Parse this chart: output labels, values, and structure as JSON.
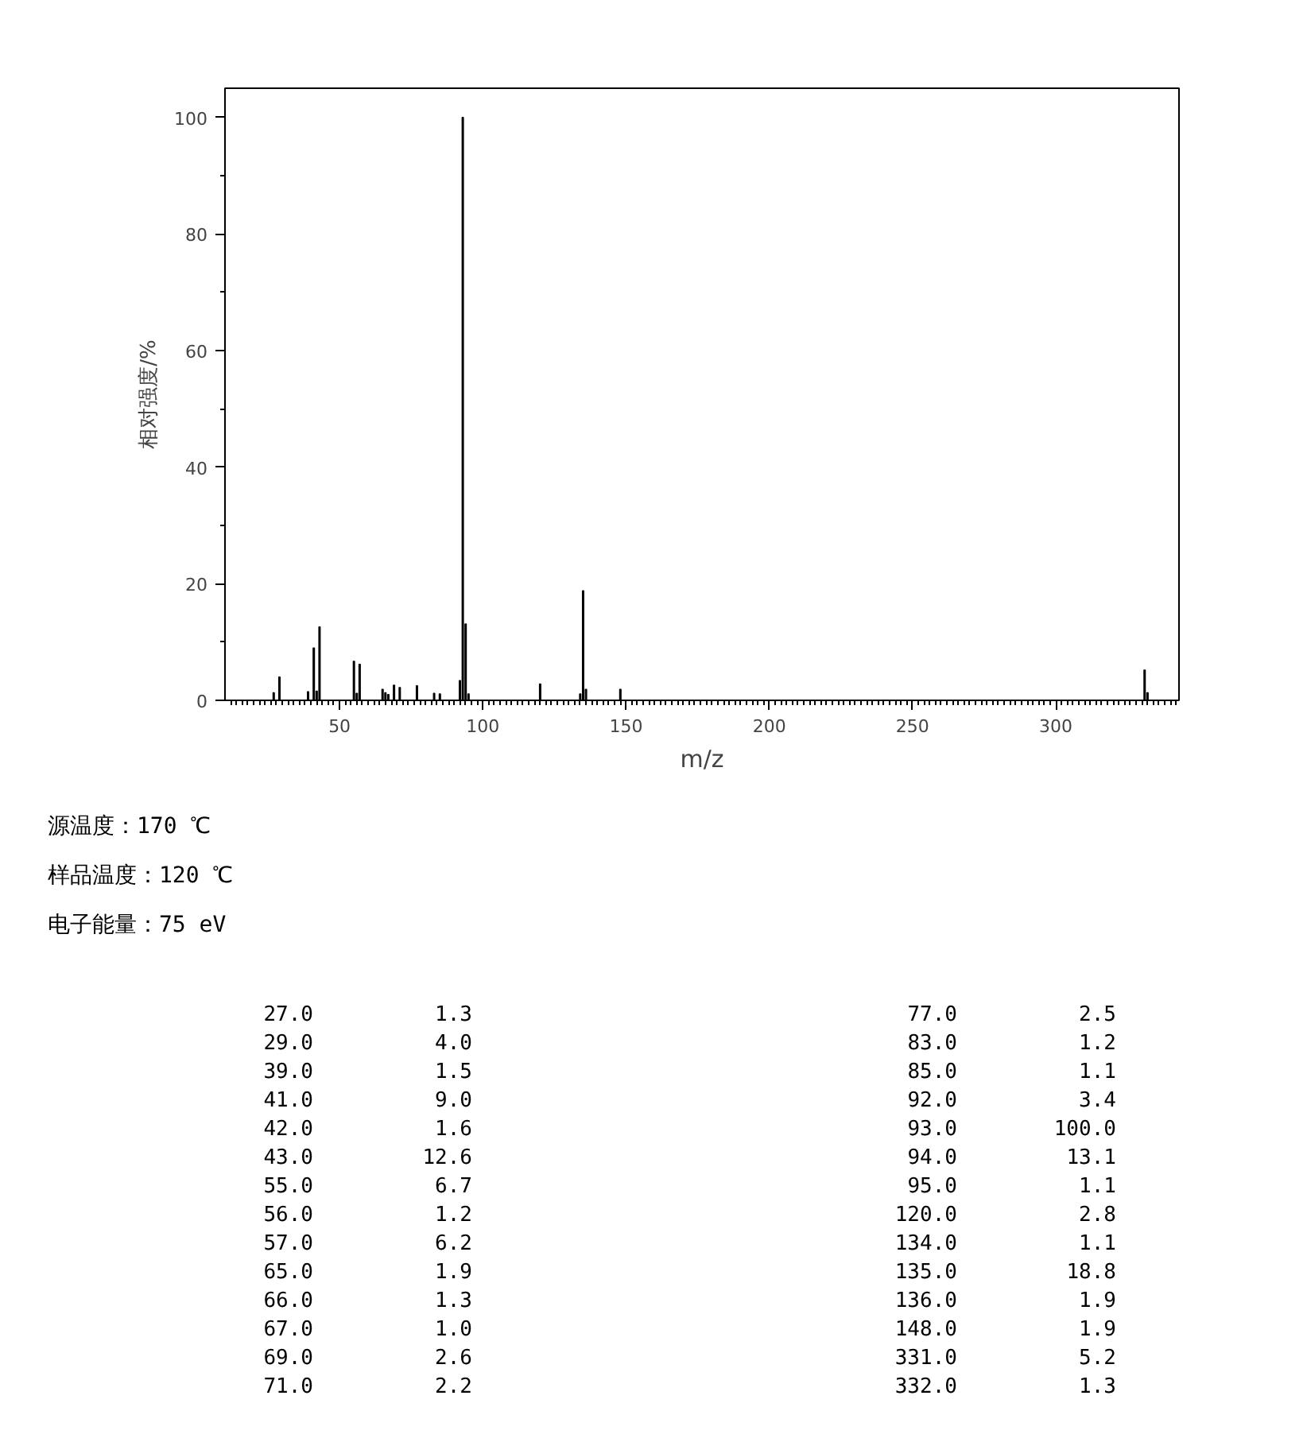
{
  "chart_data": [
    {
      "type": "bar",
      "xlabel": "m/z",
      "ylabel": "相对强度/%",
      "x": [
        27,
        29,
        39,
        41,
        42,
        43,
        55,
        56,
        57,
        65,
        66,
        67,
        69,
        71,
        77,
        83,
        85,
        92,
        93,
        94,
        95,
        120,
        134,
        135,
        136,
        148,
        331,
        332
      ],
      "values": [
        1.3,
        4.0,
        1.5,
        9.0,
        1.6,
        12.6,
        6.7,
        1.2,
        6.2,
        1.9,
        1.3,
        1.0,
        2.6,
        2.2,
        2.5,
        1.2,
        1.1,
        3.4,
        100.0,
        13.1,
        1.1,
        2.8,
        1.1,
        18.8,
        1.9,
        1.9,
        5.2,
        1.3
      ],
      "color": "#000000",
      "xlim": [
        10,
        343
      ],
      "ylim": [
        0,
        105
      ],
      "xticks": [
        50,
        100,
        150,
        200,
        250,
        300
      ],
      "yticks": [
        0,
        20,
        40,
        60,
        80,
        100
      ],
      "grid": false,
      "annotations": [
        "源温度：170 ℃",
        "样品温度：120 ℃",
        "电子能量：75 eV"
      ]
    },
    {
      "type": "other",
      "annotations": [
        "27.0",
        "1.3",
        "77.0",
        "2.5",
        "29.0",
        "4.0",
        "83.0",
        "1.2",
        "39.0",
        "1.5",
        "85.0",
        "1.1",
        "41.0",
        "9.0",
        "92.0",
        "3.4",
        "42.0",
        "1.6",
        "93.0",
        "100.0",
        "43.0",
        "12.6",
        "94.0",
        "13.1",
        "55.0",
        "6.7",
        "95.0",
        "1.1",
        "56.0",
        "1.2",
        "120.0",
        "2.8",
        "57.0",
        "6.2",
        "134.0",
        "1.1",
        "65.0",
        "1.9",
        "135.0",
        "18.8",
        "66.0",
        "1.3",
        "136.0",
        "1.9",
        "67.0",
        "1.0",
        "148.0",
        "1.9",
        "69.0",
        "2.6",
        "331.0",
        "5.2",
        "71.0",
        "2.2",
        "332.0",
        "1.3"
      ]
    }
  ]
}
